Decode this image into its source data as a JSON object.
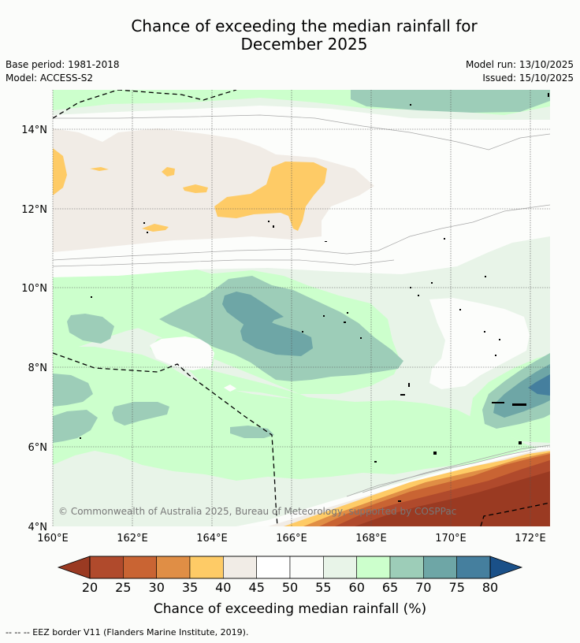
{
  "title": {
    "line1": "Chance of exceeding the median rainfall for",
    "line2": "December 2025"
  },
  "meta": {
    "base_period": "Base period: 1981-2018",
    "model": "Model: ACCESS-S2",
    "model_run": "Model run: 13/10/2025",
    "issued": "Issued: 15/10/2025"
  },
  "map": {
    "lat_labels": [
      "14°N",
      "12°N",
      "10°N",
      "8°N",
      "6°N",
      "4°N"
    ],
    "lon_labels": [
      "160°E",
      "162°E",
      "164°E",
      "166°E",
      "168°E",
      "170°E",
      "172°E"
    ],
    "copyright": "© Commonwealth of Australia 2025, Bureau of Meteorology, supported by COSPPac"
  },
  "colorbar": {
    "title": "Chance of exceeding median rainfall (%)",
    "ticks": [
      "20",
      "25",
      "30",
      "35",
      "40",
      "45",
      "50",
      "55",
      "60",
      "65",
      "70",
      "75",
      "80"
    ],
    "colors": {
      "below20": "#9a3a22",
      "20-25": "#b04a2c",
      "25-30": "#c96433",
      "30-35": "#e08e45",
      "35-40": "#fecb66",
      "40-45": "#f1ece6",
      "45-50": "#ffffff",
      "50-55": "#fcfdfb",
      "55-60": "#e8f4e8",
      "60-65": "#ccffcc",
      "65-70": "#9dcdb8",
      "70-75": "#6ea6a6",
      "75-80": "#457f9e",
      "above80": "#1a5088"
    }
  },
  "footer": {
    "eez": "--  --  -- EEZ border V11 (Flanders Marine Institute, 2019)."
  }
}
